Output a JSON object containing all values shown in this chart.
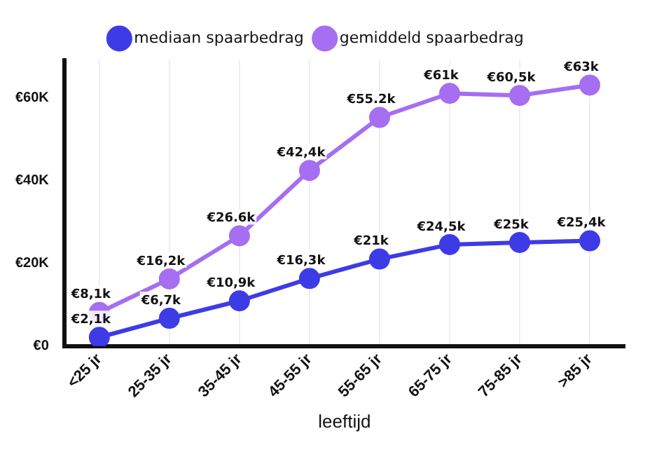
{
  "chart_data": {
    "type": "line",
    "xlabel": "leeftijd",
    "categories": [
      "<25 jr",
      "25-35 jr",
      "35-45 jr",
      "45-55 jr",
      "55-65 jr",
      "65-75 jr",
      "75-85 jr",
      ">85 jr"
    ],
    "series": [
      {
        "name": "mediaan spaarbedrag",
        "color": "#3d3be6",
        "values": [
          2.1,
          6.7,
          10.9,
          16.3,
          21,
          24.5,
          25,
          25.4
        ],
        "value_labels": [
          "€2,1k",
          "€6,7k",
          "€10,9k",
          "€16,3k",
          "€21k",
          "€24,5k",
          "€25k",
          "€25,4k"
        ]
      },
      {
        "name": "gemiddeld spaarbedrag",
        "color": "#a66ef0",
        "values": [
          8.1,
          16.2,
          26.6,
          42.4,
          55.2,
          61,
          60.5,
          63
        ],
        "value_labels": [
          "€8,1k",
          "€16,2k",
          "€26.6k",
          "€42,4k",
          "€55.2k",
          "€61k",
          "€60,5k",
          "€63k"
        ]
      }
    ],
    "ylim": [
      0,
      69
    ],
    "yticks": [
      {
        "value": 0,
        "label": "€0"
      },
      {
        "value": 20,
        "label": "€20K"
      },
      {
        "value": 40,
        "label": "€40K"
      },
      {
        "value": 60,
        "label": "€60K"
      }
    ],
    "grid": "x",
    "legend": "top",
    "marker": "circle",
    "line_style": "solid"
  }
}
